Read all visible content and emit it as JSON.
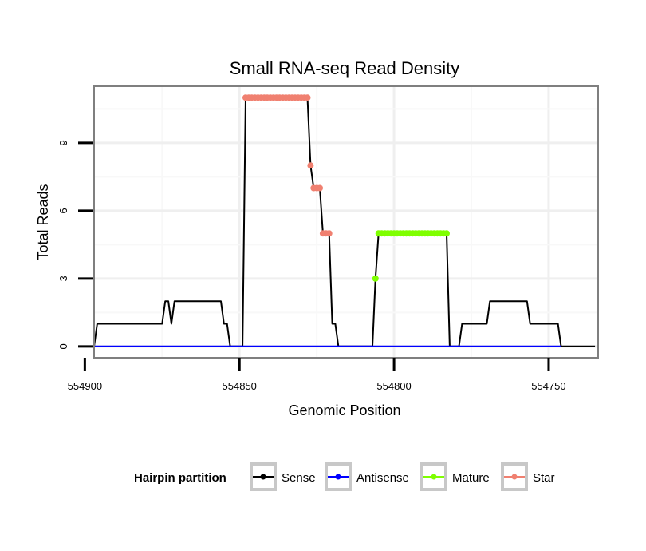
{
  "chart_data": {
    "type": "line",
    "title": "Small RNA-seq Read Density",
    "xlabel": "Genomic Position",
    "ylabel": "Total Reads",
    "xlim": [
      554897,
      554734
    ],
    "ylim": [
      -0.5,
      11.5
    ],
    "x_reversed": true,
    "x_ticks": [
      554900,
      554850,
      554800,
      554750
    ],
    "x_tick_labels": [
      "554900",
      "554850",
      "554800",
      "554750"
    ],
    "y_ticks": [
      0,
      3,
      6,
      9
    ],
    "y_tick_labels": [
      "0",
      "3",
      "6",
      "9"
    ],
    "grid": true,
    "legend": {
      "title": "Hairpin partition",
      "position": "bottom",
      "entries": [
        "Sense",
        "Antisense",
        "Mature",
        "Star"
      ]
    },
    "series": [
      {
        "name": "Sense",
        "color": "#000000",
        "style": "line",
        "points": [
          [
            554897,
            0
          ],
          [
            554896,
            1
          ],
          [
            554875,
            1
          ],
          [
            554874,
            2
          ],
          [
            554873,
            2
          ],
          [
            554872,
            1
          ],
          [
            554871,
            2
          ],
          [
            554856,
            2
          ],
          [
            554855,
            1
          ],
          [
            554854,
            1
          ],
          [
            554853,
            0
          ],
          [
            554849,
            0
          ],
          [
            554848,
            11
          ],
          [
            554828,
            11
          ],
          [
            554827,
            8
          ],
          [
            554826,
            7
          ],
          [
            554824,
            7
          ],
          [
            554823,
            5
          ],
          [
            554821,
            5
          ],
          [
            554820,
            1
          ],
          [
            554819,
            1
          ],
          [
            554818,
            0
          ],
          [
            554807,
            0
          ],
          [
            554806,
            3
          ],
          [
            554805,
            5
          ],
          [
            554783,
            5
          ],
          [
            554782,
            0
          ],
          [
            554779,
            0
          ],
          [
            554778,
            1
          ],
          [
            554770,
            1
          ],
          [
            554769,
            2
          ],
          [
            554757,
            2
          ],
          [
            554756,
            1
          ],
          [
            554747,
            1
          ],
          [
            554746,
            0
          ],
          [
            554735,
            0
          ]
        ]
      },
      {
        "name": "Antisense",
        "color": "#0000ff",
        "style": "line",
        "points": [
          [
            554897,
            0
          ],
          [
            554746,
            0
          ]
        ]
      },
      {
        "name": "Mature",
        "color": "#7fff00",
        "style": "points",
        "points": [
          [
            554806,
            3
          ],
          [
            554805,
            5
          ],
          [
            554804,
            5
          ],
          [
            554803,
            5
          ],
          [
            554802,
            5
          ],
          [
            554801,
            5
          ],
          [
            554800,
            5
          ],
          [
            554799,
            5
          ],
          [
            554798,
            5
          ],
          [
            554797,
            5
          ],
          [
            554796,
            5
          ],
          [
            554795,
            5
          ],
          [
            554794,
            5
          ],
          [
            554793,
            5
          ],
          [
            554792,
            5
          ],
          [
            554791,
            5
          ],
          [
            554790,
            5
          ],
          [
            554789,
            5
          ],
          [
            554788,
            5
          ],
          [
            554787,
            5
          ],
          [
            554786,
            5
          ],
          [
            554785,
            5
          ],
          [
            554784,
            5
          ],
          [
            554783,
            5
          ]
        ]
      },
      {
        "name": "Star",
        "color": "#f08070",
        "style": "points",
        "points": [
          [
            554848,
            11
          ],
          [
            554847,
            11
          ],
          [
            554846,
            11
          ],
          [
            554845,
            11
          ],
          [
            554844,
            11
          ],
          [
            554843,
            11
          ],
          [
            554842,
            11
          ],
          [
            554841,
            11
          ],
          [
            554840,
            11
          ],
          [
            554839,
            11
          ],
          [
            554838,
            11
          ],
          [
            554837,
            11
          ],
          [
            554836,
            11
          ],
          [
            554835,
            11
          ],
          [
            554834,
            11
          ],
          [
            554833,
            11
          ],
          [
            554832,
            11
          ],
          [
            554831,
            11
          ],
          [
            554830,
            11
          ],
          [
            554829,
            11
          ],
          [
            554828,
            11
          ],
          [
            554827,
            8
          ],
          [
            554826,
            7
          ],
          [
            554825,
            7
          ],
          [
            554824,
            7
          ],
          [
            554823,
            5
          ],
          [
            554822,
            5
          ],
          [
            554821,
            5
          ]
        ]
      }
    ]
  }
}
